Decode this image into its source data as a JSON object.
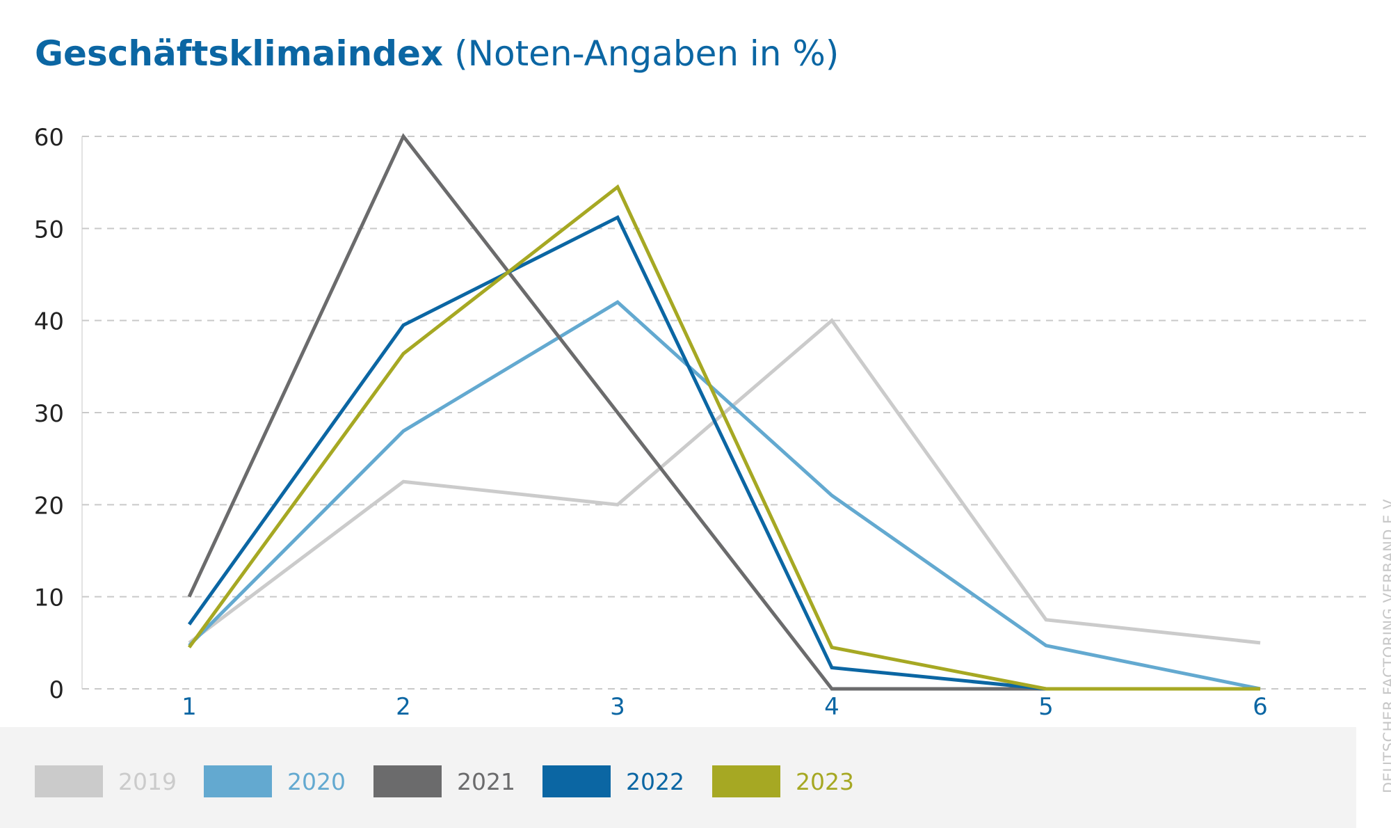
{
  "title": {
    "bold": "Geschäftsklimaindex",
    "regular": " (Noten-Angaben in %)"
  },
  "credit": "DEUTSCHER FACTORING VERBAND E.V.",
  "chart_data": {
    "type": "line",
    "title": "Geschäftsklimaindex (Noten-Angaben in %)",
    "categories": [
      "1",
      "2",
      "3",
      "4",
      "5",
      "6"
    ],
    "ylim": [
      0,
      60
    ],
    "yticks": [
      "0",
      "10",
      "20",
      "30",
      "40",
      "50",
      "60"
    ],
    "grid": true,
    "legend": "bottom",
    "series": [
      {
        "name": "2019",
        "color": "#cbcbcb",
        "values": [
          5,
          22.5,
          20,
          40,
          7.5,
          5
        ]
      },
      {
        "name": "2020",
        "color": "#63a9d0",
        "values": [
          4.7,
          28,
          42,
          21,
          4.7,
          0
        ]
      },
      {
        "name": "2021",
        "color": "#6b6b6c",
        "values": [
          10,
          60,
          30,
          0,
          0,
          0
        ]
      },
      {
        "name": "2022",
        "color": "#0b66a3",
        "values": [
          7,
          39.5,
          51.2,
          2.3,
          0,
          0
        ]
      },
      {
        "name": "2023",
        "color": "#a6a823",
        "values": [
          4.5,
          36.4,
          54.5,
          4.5,
          0,
          0
        ]
      }
    ]
  }
}
